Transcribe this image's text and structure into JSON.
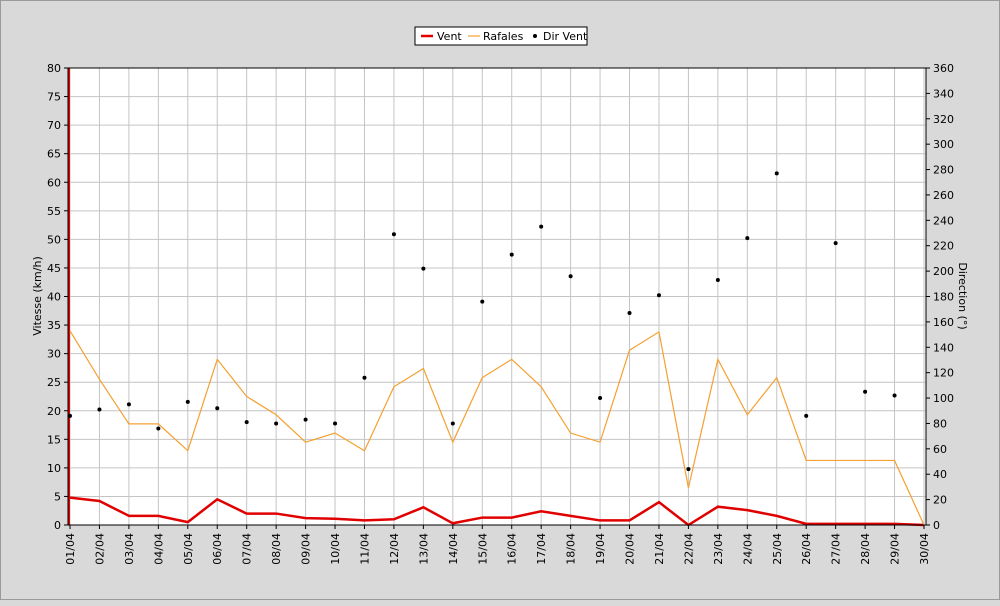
{
  "chart_data": {
    "type": "line",
    "categories": [
      "01/04",
      "02/04",
      "03/04",
      "04/04",
      "05/04",
      "06/04",
      "07/04",
      "08/04",
      "09/04",
      "10/04",
      "11/04",
      "12/04",
      "13/04",
      "14/04",
      "15/04",
      "16/04",
      "17/04",
      "18/04",
      "19/04",
      "20/04",
      "21/04",
      "22/04",
      "23/04",
      "24/04",
      "25/04",
      "26/04",
      "27/04",
      "28/04",
      "29/04",
      "30/04"
    ],
    "ylabel": "Vitesse (km/h)",
    "y2label": "Direction (°)",
    "ylim": [
      0,
      80
    ],
    "yticks": [
      0,
      5,
      10,
      15,
      20,
      25,
      30,
      35,
      40,
      45,
      50,
      55,
      60,
      65,
      70,
      75,
      80
    ],
    "y2lim": [
      0,
      360
    ],
    "y2ticks": [
      0,
      20,
      40,
      60,
      80,
      100,
      120,
      140,
      160,
      180,
      200,
      220,
      240,
      260,
      280,
      300,
      320,
      340,
      360
    ],
    "grid": true,
    "legend_placement": "top-center",
    "series": [
      {
        "name": "Vent",
        "type": "line",
        "axis": "left",
        "color": "#e00000",
        "values": [
          4.8,
          4.2,
          1.6,
          1.6,
          0.5,
          4.5,
          2.0,
          2.0,
          1.2,
          1.1,
          0.8,
          1.0,
          3.1,
          0.3,
          1.3,
          1.3,
          2.4,
          1.6,
          0.8,
          0.8,
          4.0,
          0.0,
          3.2,
          2.6,
          1.6,
          0.2,
          0.2,
          0.2,
          0.2,
          0.0
        ]
      },
      {
        "name": "Rafales",
        "type": "line",
        "axis": "left",
        "color": "#f5a030",
        "values": [
          34,
          25.5,
          17.7,
          17.7,
          13.0,
          29.0,
          22.5,
          19.3,
          14.5,
          16.1,
          13.0,
          24.2,
          27.4,
          14.5,
          25.8,
          29.0,
          24.2,
          16.1,
          14.5,
          30.6,
          33.8,
          6.5,
          29.0,
          19.3,
          25.8,
          11.3,
          11.3,
          11.3,
          11.3,
          0.0
        ]
      },
      {
        "name": "Dir Vent",
        "type": "scatter",
        "axis": "right",
        "color": "#000000",
        "values": [
          86,
          91,
          95,
          76,
          97,
          92,
          81,
          80,
          83,
          80,
          116,
          229,
          202,
          80,
          176,
          213,
          235,
          196,
          100,
          167,
          181,
          44,
          193,
          226,
          277,
          86,
          222,
          105,
          102,
          null
        ]
      }
    ]
  }
}
